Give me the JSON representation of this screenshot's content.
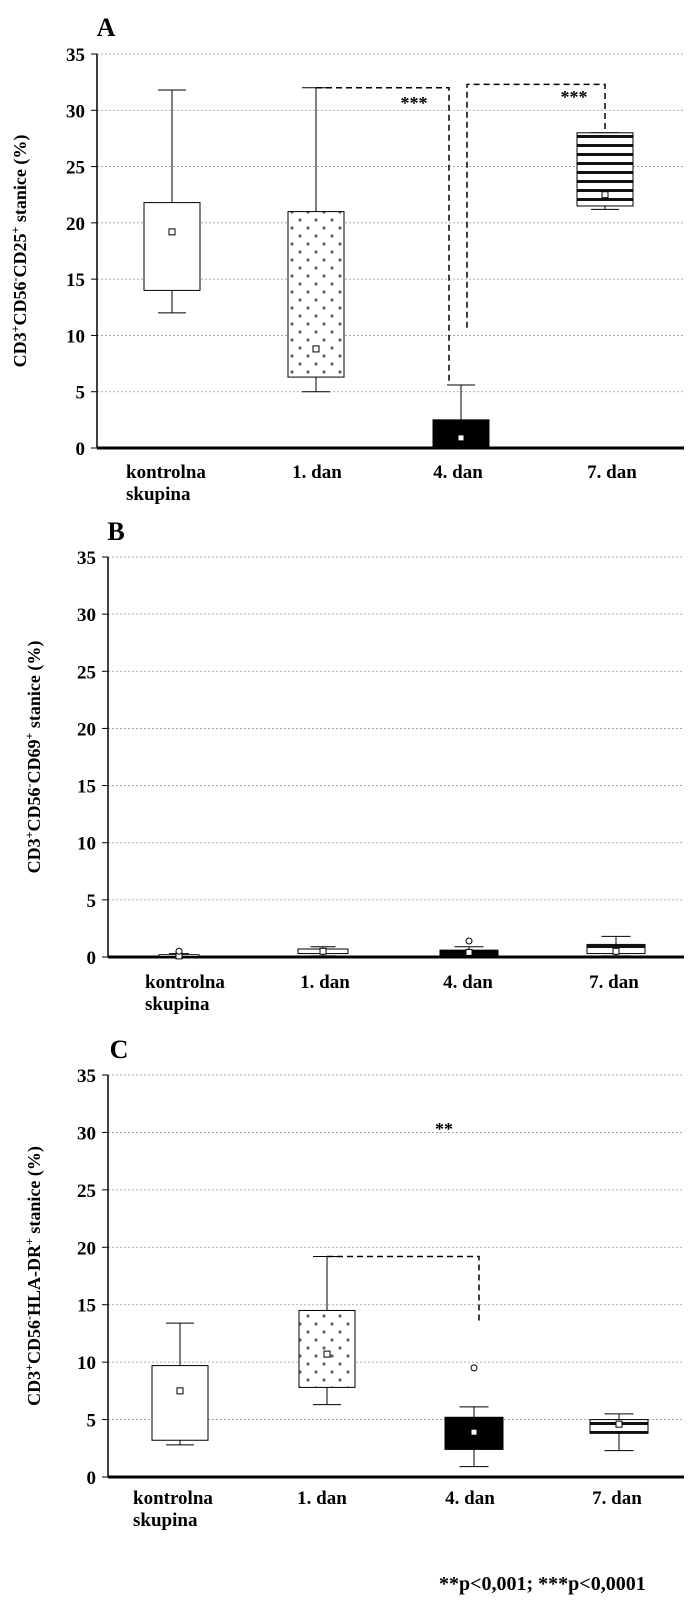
{
  "chart_data": [
    {
      "type": "box",
      "panel": "A",
      "ylabel_parts": [
        "CD3",
        "+",
        "CD56",
        "-",
        "CD25",
        "+",
        " stanice (%)"
      ],
      "ylim": [
        0,
        35
      ],
      "yticks": [
        "0",
        "5",
        "10",
        "15",
        "20",
        "25",
        "30",
        "35"
      ],
      "grid": true,
      "categories": [
        "kontrolna\nskupina",
        "1. dan",
        "4. dan",
        "7. dan"
      ],
      "boxes": [
        {
          "fill": "white",
          "whisker_low": 12,
          "q1": 14,
          "median": 19.2,
          "q3": 21.8,
          "whisker_high": 31.8,
          "outliers": []
        },
        {
          "fill": "dots",
          "whisker_low": 5,
          "q1": 6.3,
          "median": 8.8,
          "q3": 21,
          "whisker_high": 32,
          "outliers": []
        },
        {
          "fill": "black",
          "whisker_low": 0,
          "q1": 0,
          "median": 0.9,
          "q3": 2.5,
          "whisker_high": 5.6,
          "outliers": []
        },
        {
          "fill": "stripes",
          "whisker_low": 21.2,
          "q1": 21.5,
          "median": 22.5,
          "q3": 28,
          "whisker_high": 28,
          "outliers": []
        }
      ],
      "significance": [
        {
          "from": 1,
          "to": 2,
          "y": 32,
          "end_y": 5.6,
          "label": "***"
        },
        {
          "from": 2,
          "to": 3,
          "y": 32.3,
          "end_y": 28,
          "label": "***"
        }
      ]
    },
    {
      "type": "box",
      "panel": "B",
      "ylabel_parts": [
        "CD3",
        "+",
        "CD56",
        "-",
        "CD69",
        "+",
        " stanice (%)"
      ],
      "ylim": [
        0,
        35
      ],
      "yticks": [
        "0",
        "5",
        "10",
        "15",
        "20",
        "25",
        "30",
        "35"
      ],
      "grid": true,
      "categories": [
        "kontrolna\nskupina",
        "1. dan",
        "4. dan",
        "7. dan"
      ],
      "boxes": [
        {
          "fill": "white",
          "whisker_low": 0,
          "q1": 0.05,
          "median": 0.1,
          "q3": 0.2,
          "whisker_high": 0.3,
          "outliers": [
            0.5
          ]
        },
        {
          "fill": "dots",
          "whisker_low": 0.1,
          "q1": 0.3,
          "median": 0.5,
          "q3": 0.7,
          "whisker_high": 0.9,
          "outliers": []
        },
        {
          "fill": "black",
          "whisker_low": 0,
          "q1": 0.1,
          "median": 0.4,
          "q3": 0.6,
          "whisker_high": 0.9,
          "outliers": [
            1.4
          ]
        },
        {
          "fill": "stripes",
          "whisker_low": 0.1,
          "q1": 0.3,
          "median": 0.5,
          "q3": 1.1,
          "whisker_high": 1.8,
          "outliers": []
        }
      ],
      "significance": []
    },
    {
      "type": "box",
      "panel": "C",
      "ylabel_parts": [
        "CD3",
        "+",
        "CD56",
        "-",
        "HLA-DR",
        "+",
        " stanice (%)"
      ],
      "ylim": [
        0,
        35
      ],
      "yticks": [
        "0",
        "5",
        "10",
        "15",
        "20",
        "25",
        "30",
        "35"
      ],
      "grid": true,
      "categories": [
        "kontrolna\nskupina",
        "1. dan",
        "4. dan",
        "7. dan"
      ],
      "boxes": [
        {
          "fill": "white",
          "whisker_low": 2.8,
          "q1": 3.2,
          "median": 7.5,
          "q3": 9.7,
          "whisker_high": 13.4,
          "outliers": []
        },
        {
          "fill": "dots",
          "whisker_low": 6.3,
          "q1": 7.8,
          "median": 10.7,
          "q3": 14.5,
          "whisker_high": 19.2,
          "outliers": []
        },
        {
          "fill": "black",
          "whisker_low": 0.9,
          "q1": 2.4,
          "median": 3.9,
          "q3": 5.2,
          "whisker_high": 6.1,
          "outliers": [
            9.5
          ]
        },
        {
          "fill": "stripes",
          "whisker_low": 2.3,
          "q1": 3.8,
          "median": 4.6,
          "q3": 5,
          "whisker_high": 5.5,
          "outliers": []
        }
      ],
      "significance": [
        {
          "from": 1,
          "to": 2,
          "y": 19.2,
          "end_y": 13.5,
          "label": "**"
        }
      ]
    }
  ],
  "footnote": "**p<0,001; ***p<0,0001"
}
